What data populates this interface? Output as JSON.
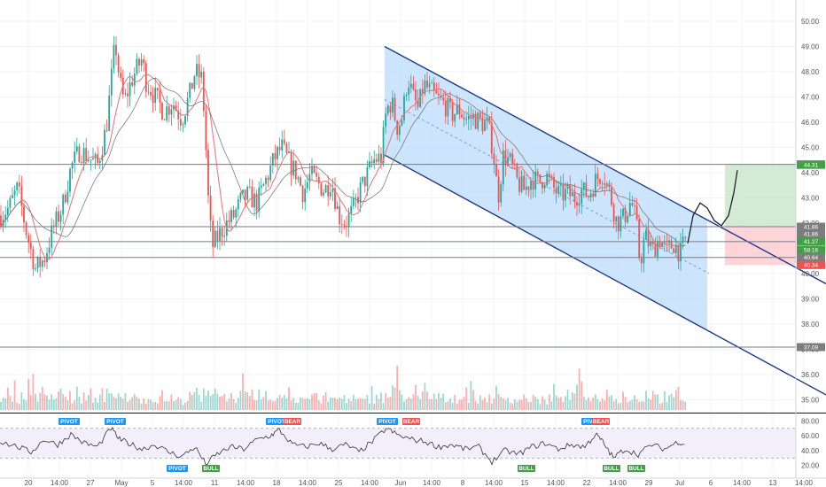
{
  "colors": {
    "up": "#26a69a",
    "down": "#ef5350",
    "channel": "#1e3a8a",
    "channel_fill": "#bcdcfb",
    "ma1": "#e57373",
    "ma2": "#7d7d7d",
    "target_zone": "#c8e6c9",
    "stop_zone": "#ffcdd2",
    "pivot_tag": "#2196f3",
    "bear_tag": "#ef5350",
    "bull_tag": "#43a047"
  },
  "chart_data": [
    {
      "type": "candlestick",
      "title": "",
      "x_ticks": [
        "20",
        "14:00",
        "27",
        "May",
        "5",
        "14:00",
        "11",
        "14:00",
        "18",
        "14:00",
        "25",
        "14:00",
        "Jun",
        "14:00",
        "8",
        "14:00",
        "15",
        "14:00",
        "22",
        "14:00",
        "29",
        "Jul",
        "6",
        "14:00",
        "13",
        "14:00"
      ],
      "y_ticks": [
        50.0,
        49.0,
        48.0,
        47.0,
        46.0,
        45.0,
        44.0,
        43.0,
        42.0,
        41.0,
        40.0,
        39.0,
        38.0,
        37.0,
        36.0,
        35.0
      ],
      "y_tick_labels": [
        "50.00",
        "49.00",
        "48.00",
        "47.00",
        "46.00",
        "45.00",
        "44.00",
        "43.00",
        "42.00",
        "41.00",
        "40.00",
        "39.00",
        "38.00",
        "37.00",
        "36.00",
        "35.00"
      ],
      "ylim": [
        34.6,
        50.7
      ],
      "close_path": [
        [
          0,
          42.3
        ],
        [
          10,
          42.6
        ],
        [
          20,
          43.4
        ],
        [
          30,
          41.6
        ],
        [
          40,
          40.2
        ],
        [
          50,
          40.6
        ],
        [
          60,
          41.8
        ],
        [
          70,
          42.6
        ],
        [
          80,
          44.2
        ],
        [
          90,
          44.9
        ],
        [
          100,
          44.6
        ],
        [
          110,
          44.3
        ],
        [
          120,
          45.8
        ],
        [
          125,
          47.5
        ],
        [
          130,
          49.2
        ],
        [
          135,
          47.6
        ],
        [
          140,
          46.8
        ],
        [
          150,
          47.8
        ],
        [
          160,
          48.5
        ],
        [
          165,
          47.6
        ],
        [
          175,
          47.0
        ],
        [
          185,
          46.4
        ],
        [
          195,
          46.8
        ],
        [
          205,
          46.1
        ],
        [
          215,
          47.2
        ],
        [
          220,
          48.0
        ],
        [
          228,
          47.7
        ],
        [
          232,
          45.2
        ],
        [
          236,
          42.2
        ],
        [
          240,
          41.1
        ],
        [
          248,
          41.6
        ],
        [
          256,
          42.0
        ],
        [
          264,
          42.3
        ],
        [
          272,
          42.9
        ],
        [
          280,
          43.1
        ],
        [
          290,
          42.8
        ],
        [
          300,
          43.7
        ],
        [
          310,
          44.6
        ],
        [
          318,
          45.0
        ],
        [
          326,
          44.4
        ],
        [
          334,
          44.0
        ],
        [
          342,
          43.2
        ],
        [
          350,
          43.9
        ],
        [
          358,
          43.6
        ],
        [
          366,
          43.3
        ],
        [
          374,
          43.7
        ],
        [
          382,
          42.3
        ],
        [
          390,
          42.0
        ],
        [
          398,
          42.5
        ],
        [
          406,
          43.3
        ],
        [
          414,
          43.9
        ],
        [
          422,
          44.5
        ],
        [
          430,
          44.6
        ],
        [
          436,
          46.5
        ],
        [
          442,
          46.8
        ],
        [
          448,
          45.8
        ],
        [
          454,
          46.2
        ],
        [
          460,
          47.8
        ],
        [
          466,
          47.0
        ],
        [
          472,
          46.5
        ],
        [
          478,
          47.5
        ],
        [
          486,
          47.2
        ],
        [
          494,
          46.9
        ],
        [
          502,
          46.7
        ],
        [
          510,
          46.3
        ],
        [
          518,
          46.5
        ],
        [
          526,
          46.1
        ],
        [
          534,
          46.2
        ],
        [
          542,
          46.0
        ],
        [
          550,
          45.9
        ],
        [
          556,
          45.0
        ],
        [
          562,
          43.0
        ],
        [
          568,
          44.7
        ],
        [
          576,
          44.4
        ],
        [
          584,
          43.6
        ],
        [
          592,
          43.3
        ],
        [
          600,
          43.8
        ],
        [
          608,
          43.6
        ],
        [
          616,
          43.9
        ],
        [
          624,
          43.4
        ],
        [
          632,
          43.1
        ],
        [
          640,
          43.2
        ],
        [
          648,
          43.0
        ],
        [
          656,
          43.3
        ],
        [
          664,
          43.1
        ],
        [
          672,
          43.7
        ],
        [
          680,
          44.0
        ],
        [
          688,
          43.2
        ],
        [
          696,
          42.0
        ],
        [
          704,
          42.2
        ],
        [
          712,
          42.9
        ],
        [
          718,
          42.0
        ],
        [
          722,
          40.4
        ],
        [
          728,
          41.5
        ],
        [
          736,
          40.9
        ],
        [
          744,
          41.4
        ],
        [
          752,
          40.9
        ],
        [
          760,
          41.2
        ],
        [
          768,
          40.8
        ],
        [
          774,
          41.4
        ]
      ],
      "projection_path": [
        [
          776,
          41.2
        ],
        [
          782,
          42.3
        ],
        [
          790,
          42.8
        ],
        [
          798,
          42.6
        ],
        [
          806,
          42.1
        ],
        [
          814,
          41.9
        ],
        [
          822,
          42.3
        ],
        [
          828,
          43.2
        ],
        [
          832,
          44.1
        ]
      ],
      "horizontal_levels": [
        44.33,
        41.86,
        41.27,
        40.64,
        37.09
      ],
      "level_labels": [
        {
          "value": 44.33,
          "text": "44.33",
          "color": "#7d7d7d"
        },
        {
          "value": 44.31,
          "text": "44.31",
          "color": "#43a047"
        },
        {
          "value": 41.86,
          "text": "41.86",
          "color": "#7d7d7d"
        },
        {
          "value": 41.86,
          "text": "41.86",
          "color": "#7d7d7d"
        },
        {
          "value": 41.27,
          "text": "41.27",
          "color": "#43a047"
        },
        {
          "value": 40.94,
          "text": "58:16",
          "color": "#43a047"
        },
        {
          "value": 40.64,
          "text": "40.64",
          "color": "#7d7d7d"
        },
        {
          "value": 40.34,
          "text": "40.34",
          "color": "#ef5350"
        },
        {
          "value": 37.09,
          "text": "37.09",
          "color": "#7d7d7d"
        }
      ],
      "channel": {
        "upper_start": [
          434,
          49.0
        ],
        "upper_end": [
          932,
          39.6
        ],
        "lower_start": [
          434,
          44.7
        ],
        "lower_end": [
          932,
          35.2
        ],
        "mid_start": [
          434,
          46.9
        ],
        "mid_end": [
          800,
          40.0
        ],
        "shaded_x_end": 798
      },
      "target_zone": [
        44.33,
        41.86
      ],
      "stop_zone": [
        41.86,
        40.34
      ]
    },
    {
      "type": "bar",
      "title": "",
      "series": [
        {
          "values": [
            0.22,
            0.35,
            0.28,
            0.55,
            0.3,
            0.42,
            0.62,
            0.38,
            0.27,
            0.45,
            0.33,
            0.48,
            0.7,
            0.52,
            1.0,
            0.6,
            0.4,
            0.35,
            0.5,
            0.42,
            0.3,
            0.38,
            0.55,
            0.32,
            0.25,
            0.4,
            0.85,
            0.45,
            0.35,
            0.3,
            0.42,
            0.28,
            0.36,
            0.5,
            0.33,
            0.29,
            0.38,
            0.27,
            0.34,
            0.45,
            0.3,
            0.26,
            0.32,
            0.48,
            0.58,
            0.36,
            0.7,
            0.42,
            0.35,
            0.3,
            0.28,
            0.4,
            0.33,
            0.29,
            0.36,
            0.31,
            0.45,
            0.52,
            0.34,
            0.3,
            0.27,
            0.33,
            0.36,
            0.29,
            0.32,
            0.26,
            0.38,
            0.3,
            0.28,
            0.35,
            0.41,
            0.32,
            0.27,
            0.3,
            0.34,
            0.26,
            0.24,
            0.31,
            0.22
          ]
        }
      ]
    },
    {
      "type": "line",
      "title": "",
      "y_ticks": [
        80.0,
        60.0,
        40.0,
        20.0
      ],
      "y_tick_labels": [
        "80.00",
        "60.00",
        "40.00",
        "20.00"
      ],
      "ylim": [
        10,
        90
      ],
      "bands": [
        70,
        30
      ],
      "x": [
        0,
        20,
        35,
        50,
        65,
        80,
        95,
        110,
        125,
        135,
        145,
        160,
        175,
        190,
        205,
        220,
        232,
        245,
        260,
        275,
        290,
        305,
        315,
        330,
        345,
        360,
        375,
        390,
        405,
        420,
        436,
        450,
        465,
        480,
        495,
        510,
        525,
        540,
        555,
        570,
        585,
        600,
        615,
        630,
        645,
        660,
        672,
        680,
        692,
        705,
        720,
        735,
        750,
        765,
        774
      ],
      "values": [
        52,
        45,
        38,
        55,
        48,
        62,
        50,
        45,
        70,
        55,
        50,
        42,
        48,
        38,
        32,
        45,
        22,
        35,
        45,
        42,
        55,
        60,
        68,
        48,
        45,
        50,
        42,
        48,
        38,
        52,
        70,
        60,
        55,
        52,
        45,
        48,
        42,
        45,
        25,
        40,
        35,
        45,
        50,
        42,
        48,
        45,
        62,
        52,
        30,
        42,
        35,
        48,
        42,
        52,
        48
      ],
      "tags": [
        {
          "text": "PIVOT",
          "x": 78,
          "kind": "pivot",
          "pos": "top"
        },
        {
          "text": "PIVOT",
          "x": 130,
          "kind": "pivot",
          "pos": "top"
        },
        {
          "text": "PIVOT",
          "x": 200,
          "kind": "pivot",
          "pos": "bottom"
        },
        {
          "text": "BULL",
          "x": 238,
          "kind": "bull",
          "pos": "bottom"
        },
        {
          "text": "PIVOT",
          "x": 312,
          "kind": "pivot",
          "pos": "top"
        },
        {
          "text": "BEAR",
          "x": 330,
          "kind": "bear",
          "pos": "top"
        },
        {
          "text": "PIVOT",
          "x": 437,
          "kind": "pivot",
          "pos": "top"
        },
        {
          "text": "BEAR",
          "x": 464,
          "kind": "bear",
          "pos": "top"
        },
        {
          "text": "BULL",
          "x": 594,
          "kind": "bull",
          "pos": "bottom"
        },
        {
          "text": "PIVOT",
          "x": 668,
          "kind": "pivot",
          "pos": "top"
        },
        {
          "text": "BEAR",
          "x": 678,
          "kind": "bear",
          "pos": "top"
        },
        {
          "text": "BULL",
          "x": 690,
          "kind": "bull",
          "pos": "bottom"
        },
        {
          "text": "BULL",
          "x": 718,
          "kind": "bull",
          "pos": "bottom"
        }
      ]
    }
  ]
}
